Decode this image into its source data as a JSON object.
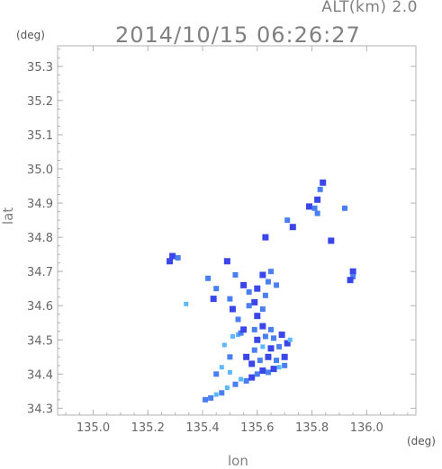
{
  "header": {
    "altitude": "ALT(km) 2.0",
    "timestamp": "2014/10/15 06:26:27"
  },
  "chart_data": {
    "type": "scatter",
    "xlabel": "lon",
    "ylabel": "lat",
    "x_unit": "(deg)",
    "y_unit": "(deg)",
    "xlim": [
      134.87,
      136.18
    ],
    "ylim": [
      34.28,
      35.36
    ],
    "xticks": [
      "135.0",
      "135.2",
      "135.4",
      "135.6",
      "135.8",
      "136.0"
    ],
    "yticks": [
      "34.3",
      "34.4",
      "34.5",
      "34.6",
      "34.7",
      "34.8",
      "34.9",
      "35.0",
      "35.1",
      "35.2",
      "35.3"
    ],
    "grid": false,
    "colors": {
      "frame": "#b3b3b3",
      "light": "#5cb8ff",
      "mid": "#4a7ff0",
      "strong": "#3b46e8"
    },
    "cells": [
      {
        "lon": 135.41,
        "lat": 34.325,
        "level": "mid"
      },
      {
        "lon": 135.43,
        "lat": 34.33,
        "level": "mid"
      },
      {
        "lon": 135.45,
        "lat": 34.34,
        "level": "light"
      },
      {
        "lon": 135.47,
        "lat": 34.345,
        "level": "mid"
      },
      {
        "lon": 135.49,
        "lat": 34.36,
        "level": "light"
      },
      {
        "lon": 135.52,
        "lat": 34.37,
        "level": "mid"
      },
      {
        "lon": 135.54,
        "lat": 34.385,
        "level": "light"
      },
      {
        "lon": 135.56,
        "lat": 34.38,
        "level": "mid"
      },
      {
        "lon": 135.58,
        "lat": 34.39,
        "level": "strong"
      },
      {
        "lon": 135.6,
        "lat": 34.4,
        "level": "mid"
      },
      {
        "lon": 135.62,
        "lat": 34.41,
        "level": "strong"
      },
      {
        "lon": 135.64,
        "lat": 34.405,
        "level": "mid"
      },
      {
        "lon": 135.66,
        "lat": 34.415,
        "level": "strong"
      },
      {
        "lon": 135.68,
        "lat": 34.42,
        "level": "light"
      },
      {
        "lon": 135.7,
        "lat": 34.425,
        "level": "mid"
      },
      {
        "lon": 135.58,
        "lat": 34.43,
        "level": "strong"
      },
      {
        "lon": 135.61,
        "lat": 34.44,
        "level": "mid"
      },
      {
        "lon": 135.64,
        "lat": 34.45,
        "level": "strong"
      },
      {
        "lon": 135.67,
        "lat": 34.44,
        "level": "mid"
      },
      {
        "lon": 135.7,
        "lat": 34.45,
        "level": "strong"
      },
      {
        "lon": 135.59,
        "lat": 34.47,
        "level": "mid"
      },
      {
        "lon": 135.62,
        "lat": 34.48,
        "level": "light"
      },
      {
        "lon": 135.65,
        "lat": 34.475,
        "level": "strong"
      },
      {
        "lon": 135.68,
        "lat": 34.48,
        "level": "mid"
      },
      {
        "lon": 135.71,
        "lat": 34.49,
        "level": "strong"
      },
      {
        "lon": 135.6,
        "lat": 34.5,
        "level": "strong"
      },
      {
        "lon": 135.63,
        "lat": 34.51,
        "level": "mid"
      },
      {
        "lon": 135.66,
        "lat": 34.505,
        "level": "mid"
      },
      {
        "lon": 135.69,
        "lat": 34.515,
        "level": "strong"
      },
      {
        "lon": 135.72,
        "lat": 34.5,
        "level": "light"
      },
      {
        "lon": 135.59,
        "lat": 34.53,
        "level": "mid"
      },
      {
        "lon": 135.62,
        "lat": 34.54,
        "level": "strong"
      },
      {
        "lon": 135.65,
        "lat": 34.53,
        "level": "mid"
      },
      {
        "lon": 135.6,
        "lat": 34.57,
        "level": "strong"
      },
      {
        "lon": 135.62,
        "lat": 34.59,
        "level": "mid"
      },
      {
        "lon": 135.59,
        "lat": 34.61,
        "level": "strong"
      },
      {
        "lon": 135.63,
        "lat": 34.63,
        "level": "mid"
      },
      {
        "lon": 135.6,
        "lat": 34.65,
        "level": "strong"
      },
      {
        "lon": 135.64,
        "lat": 34.67,
        "level": "mid"
      },
      {
        "lon": 135.62,
        "lat": 34.69,
        "level": "strong"
      },
      {
        "lon": 135.65,
        "lat": 34.7,
        "level": "mid"
      },
      {
        "lon": 135.57,
        "lat": 34.64,
        "level": "mid"
      },
      {
        "lon": 135.55,
        "lat": 34.66,
        "level": "strong"
      },
      {
        "lon": 135.67,
        "lat": 34.66,
        "level": "mid"
      },
      {
        "lon": 135.53,
        "lat": 34.56,
        "level": "mid"
      },
      {
        "lon": 135.51,
        "lat": 34.59,
        "level": "strong"
      },
      {
        "lon": 135.5,
        "lat": 34.62,
        "level": "mid"
      },
      {
        "lon": 135.45,
        "lat": 34.65,
        "level": "mid"
      },
      {
        "lon": 135.44,
        "lat": 34.62,
        "level": "strong"
      },
      {
        "lon": 135.42,
        "lat": 34.68,
        "level": "mid"
      },
      {
        "lon": 135.53,
        "lat": 34.515,
        "level": "light"
      },
      {
        "lon": 135.54,
        "lat": 34.52,
        "level": "mid"
      },
      {
        "lon": 135.51,
        "lat": 34.51,
        "level": "light"
      },
      {
        "lon": 135.48,
        "lat": 34.485,
        "level": "light"
      },
      {
        "lon": 135.5,
        "lat": 34.45,
        "level": "mid"
      },
      {
        "lon": 135.56,
        "lat": 34.45,
        "level": "strong"
      },
      {
        "lon": 135.47,
        "lat": 34.42,
        "level": "light"
      },
      {
        "lon": 135.45,
        "lat": 34.4,
        "level": "mid"
      },
      {
        "lon": 135.5,
        "lat": 34.405,
        "level": "light"
      },
      {
        "lon": 135.29,
        "lat": 34.745,
        "level": "strong"
      },
      {
        "lon": 135.31,
        "lat": 34.74,
        "level": "mid"
      },
      {
        "lon": 135.28,
        "lat": 34.73,
        "level": "strong"
      },
      {
        "lon": 135.63,
        "lat": 34.8,
        "level": "strong"
      },
      {
        "lon": 135.71,
        "lat": 34.85,
        "level": "mid"
      },
      {
        "lon": 135.73,
        "lat": 34.83,
        "level": "strong"
      },
      {
        "lon": 135.79,
        "lat": 34.89,
        "level": "strong"
      },
      {
        "lon": 135.81,
        "lat": 34.885,
        "level": "mid"
      },
      {
        "lon": 135.82,
        "lat": 34.91,
        "level": "strong"
      },
      {
        "lon": 135.83,
        "lat": 34.94,
        "level": "mid"
      },
      {
        "lon": 135.84,
        "lat": 34.96,
        "level": "strong"
      },
      {
        "lon": 135.82,
        "lat": 34.87,
        "level": "mid"
      },
      {
        "lon": 135.87,
        "lat": 34.79,
        "level": "strong"
      },
      {
        "lon": 135.92,
        "lat": 34.885,
        "level": "mid"
      },
      {
        "lon": 135.95,
        "lat": 34.7,
        "level": "strong"
      },
      {
        "lon": 135.95,
        "lat": 34.685,
        "level": "mid"
      },
      {
        "lon": 135.94,
        "lat": 34.675,
        "level": "strong"
      },
      {
        "lon": 135.52,
        "lat": 34.69,
        "level": "mid"
      },
      {
        "lon": 135.49,
        "lat": 34.73,
        "level": "strong"
      },
      {
        "lon": 135.57,
        "lat": 34.6,
        "level": "mid"
      },
      {
        "lon": 135.55,
        "lat": 34.53,
        "level": "strong"
      },
      {
        "lon": 135.34,
        "lat": 34.605,
        "level": "light"
      }
    ]
  }
}
